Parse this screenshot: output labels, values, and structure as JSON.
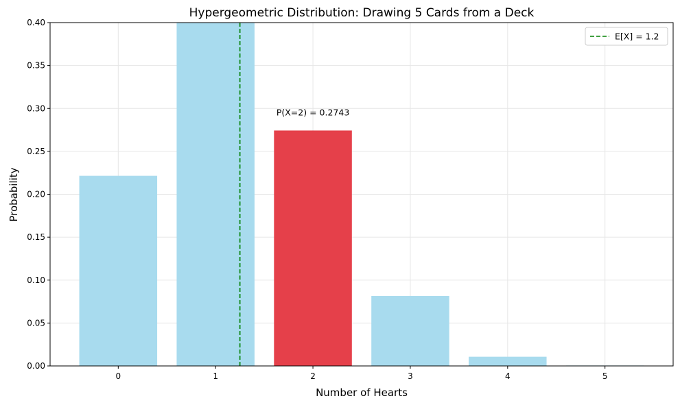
{
  "chart_data": {
    "type": "bar",
    "title": "Hypergeometric Distribution: Drawing 5 Cards from a Deck",
    "xlabel": "Number of Hearts",
    "ylabel": "Probability",
    "categories": [
      "0",
      "1",
      "2",
      "3",
      "4",
      "5"
    ],
    "x": [
      0,
      1,
      2,
      3,
      4,
      5
    ],
    "values": [
      0.2215,
      0.4114,
      0.2743,
      0.0815,
      0.0107,
      0.0005
    ],
    "highlight_index": 2,
    "ylim": [
      0,
      0.4
    ],
    "xlim": [
      -0.7,
      5.7
    ],
    "yticks": [
      0.0,
      0.05,
      0.1,
      0.15,
      0.2,
      0.25,
      0.3,
      0.35,
      0.4
    ],
    "ytick_labels": [
      "0.00",
      "0.05",
      "0.10",
      "0.15",
      "0.20",
      "0.25",
      "0.30",
      "0.35",
      "0.40"
    ],
    "grid": true,
    "colors": {
      "bar": "#a8dbee",
      "highlight": "#e5404a",
      "mean_line": "#008000",
      "grid": "#e6e6e6"
    },
    "mean_line": {
      "x": 1.25,
      "label": "E[X] = 1.2",
      "style": "dashed"
    },
    "annotation": {
      "text": "P(X=2) = 0.2743",
      "x": 2,
      "y": 0.295
    },
    "legend": {
      "placement": "top-right",
      "entries": [
        "E[X] = 1.2"
      ]
    }
  }
}
